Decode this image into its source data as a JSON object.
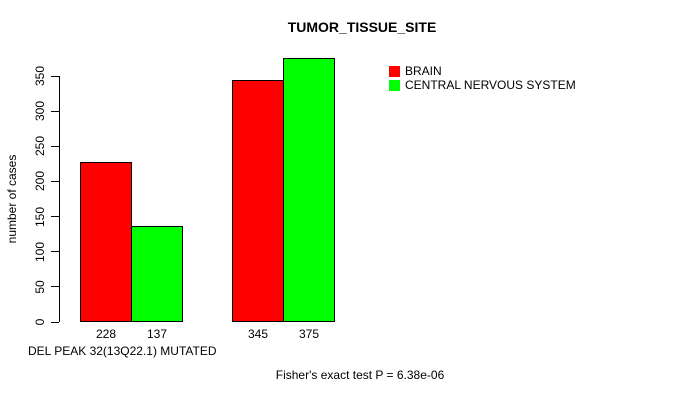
{
  "title": "TUMOR_TISSUE_SITE",
  "y_axis": {
    "label": "number of cases",
    "ticks": [
      0,
      50,
      100,
      150,
      200,
      250,
      300,
      350
    ]
  },
  "x_axis": {
    "label": "DEL PEAK 32(13Q22.1) MUTATED"
  },
  "legend": {
    "items": [
      {
        "label": "BRAIN",
        "color": "#ff0000"
      },
      {
        "label": "CENTRAL NERVOUS SYSTEM",
        "color": "#00ff00"
      }
    ]
  },
  "annotation": "Fisher's exact test P = 6.38e-06",
  "chart_data": {
    "type": "bar",
    "title": "TUMOR_TISSUE_SITE",
    "xlabel": "DEL PEAK 32(13Q22.1) MUTATED",
    "ylabel": "number of cases",
    "ylim": [
      0,
      350
    ],
    "yticks": [
      0,
      50,
      100,
      150,
      200,
      250,
      300,
      350
    ],
    "grid": false,
    "legend_position": "top-right",
    "categories": [
      "group-1",
      "group-2"
    ],
    "series": [
      {
        "name": "BRAIN",
        "color": "#ff0000",
        "values": [
          228,
          345
        ]
      },
      {
        "name": "CENTRAL NERVOUS SYSTEM",
        "color": "#00ff00",
        "values": [
          137,
          375
        ]
      }
    ],
    "bar_value_labels": [
      [
        228,
        137
      ],
      [
        345,
        375
      ]
    ],
    "annotation": "Fisher's exact test P = 6.38e-06"
  }
}
